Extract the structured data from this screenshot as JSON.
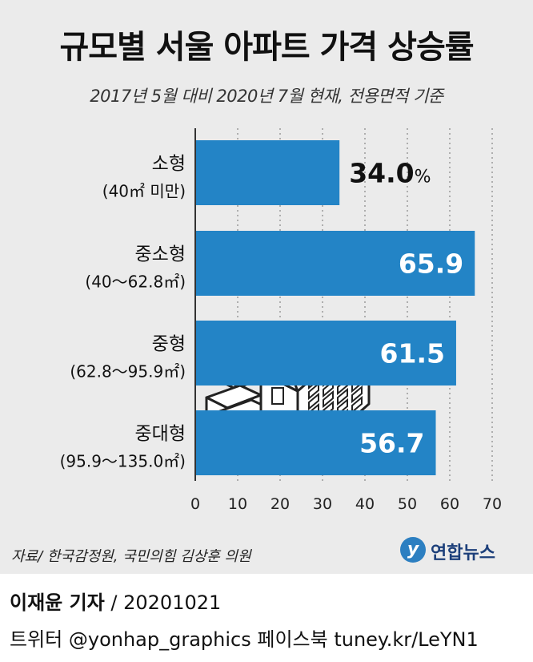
{
  "title": "규모별 서울 아파트 가격 상승률",
  "subtitle": "2017년 5월 대비 2020년 7월 현재, 전용면적 기준",
  "chart_data": {
    "type": "bar",
    "orientation": "horizontal",
    "categories": [
      "소형",
      "중소형",
      "중형",
      "중대형"
    ],
    "category_sublabels": [
      "(40㎡ 미만)",
      "(40～62.8㎡)",
      "(62.8～95.9㎡)",
      "(95.9～135.0㎡)"
    ],
    "values": [
      34.0,
      65.9,
      61.5,
      56.7
    ],
    "value_labels": [
      "34.0",
      "65.9",
      "61.5",
      "56.7"
    ],
    "unit": "%",
    "xlim": [
      0,
      70
    ],
    "xticks": [
      0,
      10,
      20,
      30,
      40,
      50,
      60,
      70
    ],
    "bar_color": "#2384c6",
    "grid": "vertical dotted"
  },
  "source": "자료/ 한국감정원, 국민의힘 김상훈 의원",
  "logo_text": "연합뉴스",
  "footer": {
    "reporter": "이재윤 기자",
    "date": "/ 20201021",
    "social": "트위터 @yonhap_graphics  페이스북 tuney.kr/LeYN1"
  }
}
